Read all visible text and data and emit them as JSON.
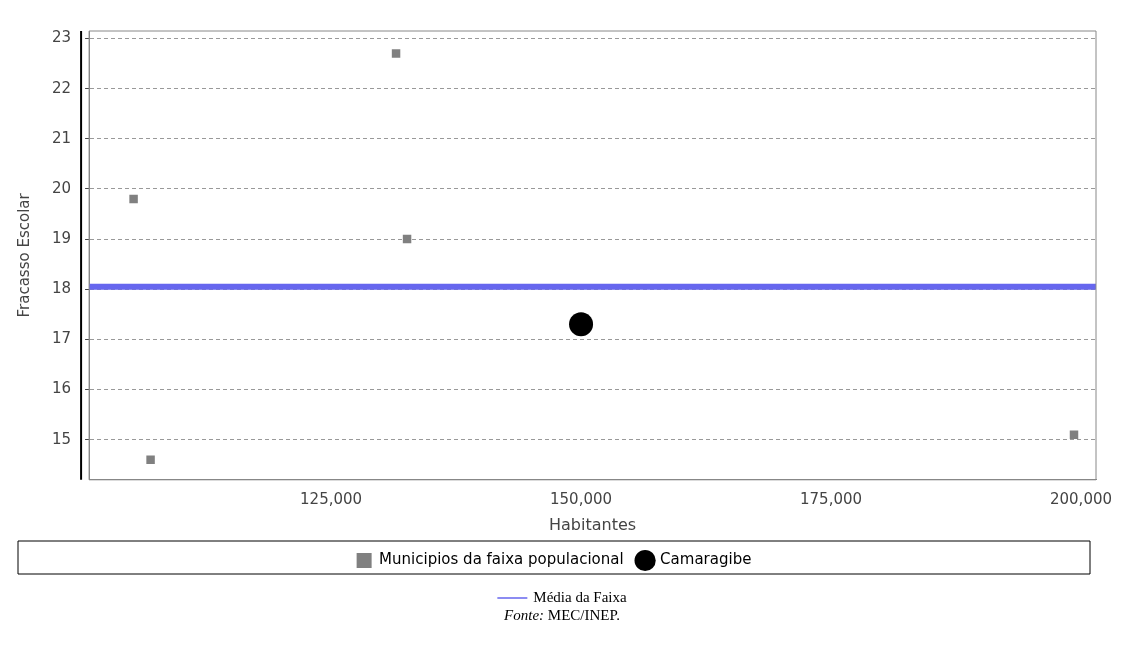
{
  "chart_data": {
    "type": "scatter",
    "xlabel": "Habitantes",
    "ylabel": "Fracasso Escolar",
    "xlim": [
      100800,
      201500
    ],
    "ylim": [
      14.2,
      23.15
    ],
    "xticks": [
      {
        "value": 125000,
        "label": "125,000"
      },
      {
        "value": 150000,
        "label": "150,000"
      },
      {
        "value": 175000,
        "label": "175,000"
      },
      {
        "value": 200000,
        "label": "200,000"
      }
    ],
    "yticks": [
      15,
      16,
      17,
      18,
      19,
      20,
      21,
      22,
      23
    ],
    "grid": "y",
    "legend": "bottom",
    "series": [
      {
        "name": "Municipios da faixa populacional",
        "color": "#808080",
        "marker": "square",
        "x": [
          105250,
          106950,
          131500,
          132600,
          199300
        ],
        "values": [
          19.8,
          14.6,
          22.7,
          19.0,
          15.1
        ]
      },
      {
        "name": "Camaragibe",
        "color": "#000000",
        "marker": "circle",
        "x": [
          150000
        ],
        "values": [
          17.3
        ]
      }
    ],
    "ref_lines": [
      {
        "axis": "y",
        "value": 18.05,
        "label": "Média da Faixa",
        "color": "#6666ee"
      }
    ],
    "annotations": [
      "Fonte: MEC/INEP."
    ]
  }
}
